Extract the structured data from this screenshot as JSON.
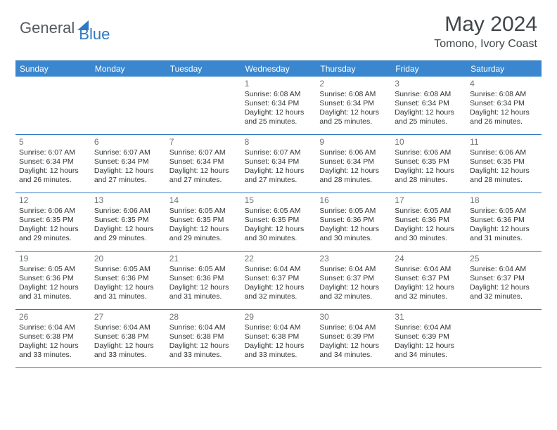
{
  "brand": {
    "part1": "General",
    "part2": "Blue"
  },
  "title": "May 2024",
  "location": "Tomono, Ivory Coast",
  "colors": {
    "header_bg": "#3a87cf",
    "border": "#2f78c2",
    "daynum": "#707478",
    "text": "#303436",
    "title": "#404548"
  },
  "weekdays": [
    "Sunday",
    "Monday",
    "Tuesday",
    "Wednesday",
    "Thursday",
    "Friday",
    "Saturday"
  ],
  "weeks": [
    [
      null,
      null,
      null,
      {
        "n": "1",
        "sr": "6:08 AM",
        "ss": "6:34 PM",
        "dl": "12 hours and 25 minutes."
      },
      {
        "n": "2",
        "sr": "6:08 AM",
        "ss": "6:34 PM",
        "dl": "12 hours and 25 minutes."
      },
      {
        "n": "3",
        "sr": "6:08 AM",
        "ss": "6:34 PM",
        "dl": "12 hours and 25 minutes."
      },
      {
        "n": "4",
        "sr": "6:08 AM",
        "ss": "6:34 PM",
        "dl": "12 hours and 26 minutes."
      }
    ],
    [
      {
        "n": "5",
        "sr": "6:07 AM",
        "ss": "6:34 PM",
        "dl": "12 hours and 26 minutes."
      },
      {
        "n": "6",
        "sr": "6:07 AM",
        "ss": "6:34 PM",
        "dl": "12 hours and 27 minutes."
      },
      {
        "n": "7",
        "sr": "6:07 AM",
        "ss": "6:34 PM",
        "dl": "12 hours and 27 minutes."
      },
      {
        "n": "8",
        "sr": "6:07 AM",
        "ss": "6:34 PM",
        "dl": "12 hours and 27 minutes."
      },
      {
        "n": "9",
        "sr": "6:06 AM",
        "ss": "6:34 PM",
        "dl": "12 hours and 28 minutes."
      },
      {
        "n": "10",
        "sr": "6:06 AM",
        "ss": "6:35 PM",
        "dl": "12 hours and 28 minutes."
      },
      {
        "n": "11",
        "sr": "6:06 AM",
        "ss": "6:35 PM",
        "dl": "12 hours and 28 minutes."
      }
    ],
    [
      {
        "n": "12",
        "sr": "6:06 AM",
        "ss": "6:35 PM",
        "dl": "12 hours and 29 minutes."
      },
      {
        "n": "13",
        "sr": "6:06 AM",
        "ss": "6:35 PM",
        "dl": "12 hours and 29 minutes."
      },
      {
        "n": "14",
        "sr": "6:05 AM",
        "ss": "6:35 PM",
        "dl": "12 hours and 29 minutes."
      },
      {
        "n": "15",
        "sr": "6:05 AM",
        "ss": "6:35 PM",
        "dl": "12 hours and 30 minutes."
      },
      {
        "n": "16",
        "sr": "6:05 AM",
        "ss": "6:36 PM",
        "dl": "12 hours and 30 minutes."
      },
      {
        "n": "17",
        "sr": "6:05 AM",
        "ss": "6:36 PM",
        "dl": "12 hours and 30 minutes."
      },
      {
        "n": "18",
        "sr": "6:05 AM",
        "ss": "6:36 PM",
        "dl": "12 hours and 31 minutes."
      }
    ],
    [
      {
        "n": "19",
        "sr": "6:05 AM",
        "ss": "6:36 PM",
        "dl": "12 hours and 31 minutes."
      },
      {
        "n": "20",
        "sr": "6:05 AM",
        "ss": "6:36 PM",
        "dl": "12 hours and 31 minutes."
      },
      {
        "n": "21",
        "sr": "6:05 AM",
        "ss": "6:36 PM",
        "dl": "12 hours and 31 minutes."
      },
      {
        "n": "22",
        "sr": "6:04 AM",
        "ss": "6:37 PM",
        "dl": "12 hours and 32 minutes."
      },
      {
        "n": "23",
        "sr": "6:04 AM",
        "ss": "6:37 PM",
        "dl": "12 hours and 32 minutes."
      },
      {
        "n": "24",
        "sr": "6:04 AM",
        "ss": "6:37 PM",
        "dl": "12 hours and 32 minutes."
      },
      {
        "n": "25",
        "sr": "6:04 AM",
        "ss": "6:37 PM",
        "dl": "12 hours and 32 minutes."
      }
    ],
    [
      {
        "n": "26",
        "sr": "6:04 AM",
        "ss": "6:38 PM",
        "dl": "12 hours and 33 minutes."
      },
      {
        "n": "27",
        "sr": "6:04 AM",
        "ss": "6:38 PM",
        "dl": "12 hours and 33 minutes."
      },
      {
        "n": "28",
        "sr": "6:04 AM",
        "ss": "6:38 PM",
        "dl": "12 hours and 33 minutes."
      },
      {
        "n": "29",
        "sr": "6:04 AM",
        "ss": "6:38 PM",
        "dl": "12 hours and 33 minutes."
      },
      {
        "n": "30",
        "sr": "6:04 AM",
        "ss": "6:39 PM",
        "dl": "12 hours and 34 minutes."
      },
      {
        "n": "31",
        "sr": "6:04 AM",
        "ss": "6:39 PM",
        "dl": "12 hours and 34 minutes."
      },
      null
    ]
  ],
  "labels": {
    "sunrise": "Sunrise:",
    "sunset": "Sunset:",
    "daylight": "Daylight:"
  }
}
